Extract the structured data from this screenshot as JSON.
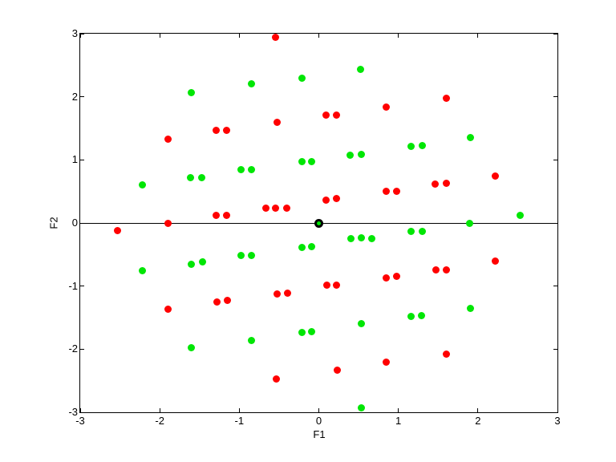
{
  "chart_data": {
    "type": "scatter",
    "title": "",
    "xlabel": "F1",
    "ylabel": "F2",
    "xlim": [
      -3,
      3
    ],
    "ylim": [
      -3,
      3
    ],
    "xticks": [
      -3,
      -2,
      -1,
      0,
      1,
      2,
      3
    ],
    "yticks": [
      3,
      2,
      1,
      0,
      -1,
      -2,
      -3
    ],
    "grid": false,
    "legend": "none",
    "zero_line_y": 0,
    "marker_diameter_px": 9,
    "series": [
      {
        "name": "red-class",
        "color": "#FF0000",
        "points": [
          [
            -0.54,
            2.94
          ],
          [
            1.6,
            1.98
          ],
          [
            0.85,
            1.84
          ],
          [
            0.09,
            1.71
          ],
          [
            0.22,
            1.71
          ],
          [
            -0.52,
            1.59
          ],
          [
            -1.29,
            1.47
          ],
          [
            -1.16,
            1.47
          ],
          [
            -1.9,
            1.33
          ],
          [
            2.22,
            0.75
          ],
          [
            1.46,
            0.62
          ],
          [
            1.6,
            0.63
          ],
          [
            0.85,
            0.5
          ],
          [
            0.98,
            0.5
          ],
          [
            0.09,
            0.36
          ],
          [
            0.22,
            0.39
          ],
          [
            -0.67,
            0.24
          ],
          [
            -0.54,
            0.24
          ],
          [
            -0.4,
            0.24
          ],
          [
            -1.29,
            0.12
          ],
          [
            -1.16,
            0.12
          ],
          [
            -1.9,
            0.0
          ],
          [
            -2.53,
            -0.12
          ],
          [
            0.1,
            -0.99
          ],
          [
            0.22,
            -0.99
          ],
          [
            0.85,
            -0.87
          ],
          [
            0.98,
            -0.85
          ],
          [
            1.47,
            -0.74
          ],
          [
            1.6,
            -0.74
          ],
          [
            2.22,
            -0.61
          ],
          [
            -0.39,
            -1.11
          ],
          [
            -0.52,
            -1.12
          ],
          [
            -1.15,
            -1.23
          ],
          [
            -1.28,
            -1.25
          ],
          [
            -1.9,
            -1.37
          ],
          [
            0.23,
            -2.33
          ],
          [
            0.85,
            -2.21
          ],
          [
            1.6,
            -2.08
          ],
          [
            -0.53,
            -2.47
          ]
        ]
      },
      {
        "name": "green-class",
        "color": "#00E605",
        "points": [
          [
            0.52,
            2.44
          ],
          [
            -0.21,
            2.3
          ],
          [
            -0.85,
            2.2
          ],
          [
            -1.6,
            2.07
          ],
          [
            1.91,
            1.35
          ],
          [
            1.3,
            1.23
          ],
          [
            1.16,
            1.22
          ],
          [
            0.53,
            1.09
          ],
          [
            0.39,
            1.08
          ],
          [
            -0.09,
            0.97
          ],
          [
            -0.21,
            0.97
          ],
          [
            -0.85,
            0.85
          ],
          [
            -0.98,
            0.85
          ],
          [
            -1.47,
            0.72
          ],
          [
            -1.61,
            0.72
          ],
          [
            -2.22,
            0.6
          ],
          [
            2.53,
            0.12
          ],
          [
            1.9,
            0.0
          ],
          [
            1.3,
            -0.13
          ],
          [
            1.16,
            -0.13
          ],
          [
            0.67,
            -0.25
          ],
          [
            0.53,
            -0.24
          ],
          [
            0.4,
            -0.25
          ],
          [
            -0.09,
            -0.38
          ],
          [
            -0.21,
            -0.39
          ],
          [
            -0.85,
            -0.51
          ],
          [
            -0.98,
            -0.52
          ],
          [
            -1.46,
            -0.62
          ],
          [
            -1.6,
            -0.65
          ],
          [
            -2.22,
            -0.76
          ],
          [
            1.91,
            -1.36
          ],
          [
            1.29,
            -1.47
          ],
          [
            1.16,
            -1.48
          ],
          [
            0.53,
            -1.6
          ],
          [
            -0.09,
            -1.72
          ],
          [
            -0.21,
            -1.74
          ],
          [
            -0.85,
            -1.86
          ],
          [
            -1.6,
            -1.98
          ],
          [
            0.53,
            -2.93
          ]
        ]
      }
    ],
    "origin_marker": {
      "x": 0,
      "y": 0,
      "edge_color": "#000000",
      "face_color": "#00E605"
    },
    "axis_color": "#000000",
    "background_color": "#FFFFFF"
  }
}
